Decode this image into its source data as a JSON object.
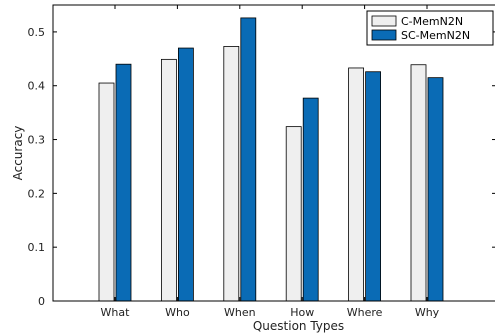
{
  "chart_data": {
    "type": "bar",
    "title": "",
    "xlabel": "Question Types",
    "ylabel": "Accuracy",
    "ylim": [
      0,
      0.55
    ],
    "yticks": [
      0,
      0.1,
      0.2,
      0.3,
      0.4,
      0.5
    ],
    "ytick_labels": [
      "0",
      "0.1",
      "0.2",
      "0.3",
      "0.4",
      "0.5"
    ],
    "grid": false,
    "legend_position": "top-right",
    "categories": [
      "What",
      "Who",
      "When",
      "How",
      "Where",
      "Why"
    ],
    "series": [
      {
        "name": "C-MemN2N",
        "color": "#efefef",
        "values": [
          0.405,
          0.449,
          0.473,
          0.324,
          0.433,
          0.439
        ]
      },
      {
        "name": "SC-MemN2N",
        "color": "#0a6bb5",
        "values": [
          0.44,
          0.47,
          0.526,
          0.377,
          0.426,
          0.415
        ]
      }
    ]
  }
}
